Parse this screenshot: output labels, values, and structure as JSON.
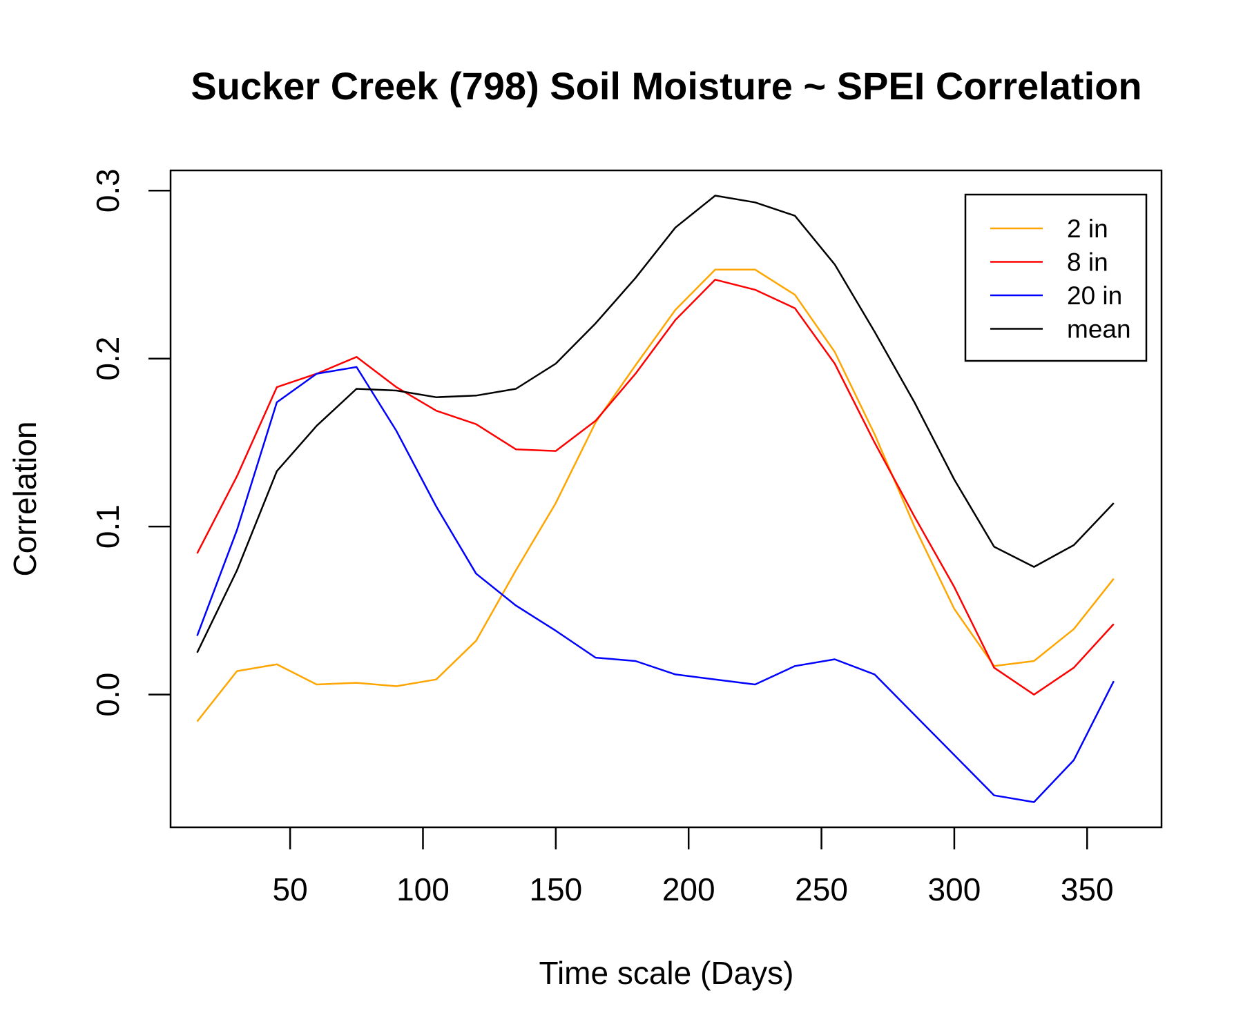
{
  "chart_data": {
    "type": "line",
    "title": "Sucker Creek (798) Soil Moisture ~ SPEI Correlation",
    "xlabel": "Time scale (Days)",
    "ylabel": "Correlation",
    "xlim": [
      5,
      378
    ],
    "ylim": [
      -0.079,
      0.312
    ],
    "xticks": [
      50,
      100,
      150,
      200,
      250,
      300,
      350
    ],
    "xtick_labels": [
      "50",
      "100",
      "150",
      "200",
      "250",
      "300",
      "350"
    ],
    "yticks": [
      0.0,
      0.1,
      0.2,
      0.3
    ],
    "ytick_labels": [
      "0.0",
      "0.1",
      "0.2",
      "0.3"
    ],
    "legend_position": "top-right",
    "grid": false,
    "x": [
      15,
      30,
      45,
      60,
      75,
      90,
      105,
      120,
      135,
      150,
      165,
      180,
      195,
      210,
      225,
      240,
      255,
      270,
      285,
      300,
      315,
      330,
      345,
      360
    ],
    "series": [
      {
        "name": "2 in",
        "color": "#FFA500",
        "values": [
          -0.016,
          0.014,
          0.018,
          0.006,
          0.007,
          0.005,
          0.009,
          0.032,
          0.074,
          0.114,
          0.162,
          0.196,
          0.229,
          0.253,
          0.253,
          0.238,
          0.204,
          0.155,
          0.1,
          0.051,
          0.017,
          0.02,
          0.039,
          0.069
        ]
      },
      {
        "name": "8 in",
        "color": "#FF0000",
        "values": [
          0.084,
          0.13,
          0.183,
          0.191,
          0.201,
          0.183,
          0.169,
          0.161,
          0.146,
          0.145,
          0.163,
          0.191,
          0.223,
          0.247,
          0.241,
          0.23,
          0.197,
          0.15,
          0.106,
          0.064,
          0.016,
          0.0,
          0.016,
          0.042
        ]
      },
      {
        "name": "20 in",
        "color": "#0000FF",
        "values": [
          0.035,
          0.098,
          0.174,
          0.191,
          0.195,
          0.157,
          0.112,
          0.072,
          0.053,
          0.038,
          0.022,
          0.02,
          0.012,
          0.009,
          0.006,
          0.017,
          0.021,
          0.012,
          -0.012,
          -0.036,
          -0.06,
          -0.064,
          -0.039,
          0.008
        ]
      },
      {
        "name": "mean",
        "color": "#000000",
        "values": [
          0.025,
          0.074,
          0.133,
          0.16,
          0.182,
          0.181,
          0.177,
          0.178,
          0.182,
          0.197,
          0.221,
          0.248,
          0.278,
          0.297,
          0.293,
          0.285,
          0.256,
          0.216,
          0.174,
          0.128,
          0.088,
          0.076,
          0.089,
          0.114
        ]
      }
    ]
  }
}
